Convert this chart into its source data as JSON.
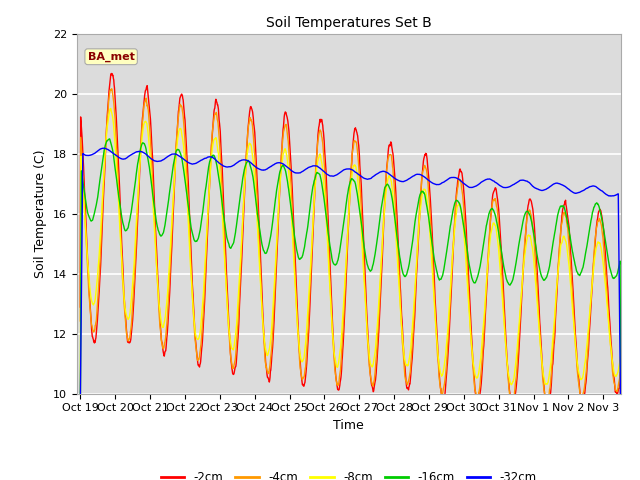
{
  "title": "Soil Temperatures Set B",
  "xlabel": "Time",
  "ylabel": "Soil Temperature (C)",
  "ylim": [
    10,
    22
  ],
  "yticks": [
    10,
    12,
    14,
    16,
    18,
    20,
    22
  ],
  "annotation": "BA_met",
  "line_colors": {
    "-2cm": "#ff0000",
    "-4cm": "#ff9900",
    "-8cm": "#ffff00",
    "-16cm": "#00cc00",
    "-32cm": "#0000ff"
  },
  "legend_entries": [
    "-2cm",
    "-4cm",
    "-8cm",
    "-16cm",
    "-32cm"
  ],
  "xtick_labels": [
    "Oct 19",
    "Oct 20",
    "Oct 21",
    "Oct 22",
    "Oct 23",
    "Oct 24",
    "Oct 25",
    "Oct 26",
    "Oct 27",
    "Oct 28",
    "Oct 29",
    "Oct 30",
    "Oct 31",
    "Nov 1",
    "Nov 2",
    "Nov 3"
  ],
  "n_days": 15.5,
  "samples_per_day": 96
}
